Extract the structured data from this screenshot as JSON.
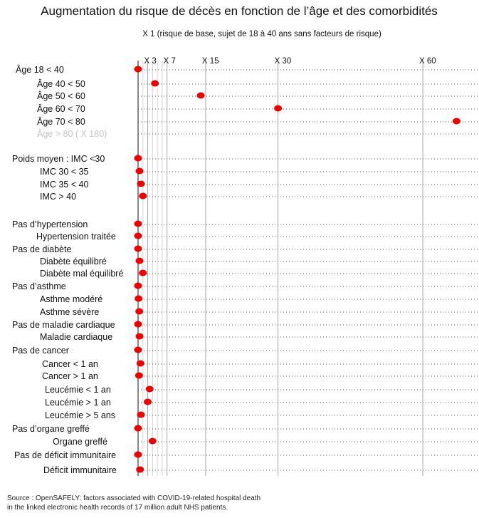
{
  "chart_data": {
    "type": "scatter",
    "title": "Augmentation du risque de décès en fonction de l’âge et des comorbidités",
    "subtitle": "X 1 (risque de base, sujet de 18 à 40 ans sans facteurs de risque)",
    "x_ticks": [
      {
        "value": 3,
        "label": "X 3"
      },
      {
        "value": 7,
        "label": "X 7"
      },
      {
        "value": 15,
        "label": "X 15"
      },
      {
        "value": 30,
        "label": "X 30"
      },
      {
        "value": 60,
        "label": "X 60"
      }
    ],
    "xlim": [
      1,
      70
    ],
    "grid": true,
    "dot_color": "#ee0000",
    "rows": [
      {
        "label": "Âge 18 < 40",
        "value": 1
      },
      {
        "label": "Âge 40 < 50",
        "value": 4.5
      },
      {
        "label": "Âge 50 < 60",
        "value": 14
      },
      {
        "label": "Âge 60 < 70",
        "value": 30
      },
      {
        "label": "Âge 70 < 80",
        "value": 67
      },
      {
        "label": "Âge > 80 ( X 180)",
        "value": null,
        "muted": true
      },
      {
        "label": "Poids moyen : IMC <30",
        "value": 1
      },
      {
        "label": "IMC 30 < 35",
        "value": 1.3
      },
      {
        "label": "IMC 35 < 40",
        "value": 1.6
      },
      {
        "label": "IMC    > 40",
        "value": 2
      },
      {
        "label": "Pas d’hypertension",
        "value": 1
      },
      {
        "label": "Hypertension traitée",
        "value": 1
      },
      {
        "label": "Pas de diabète",
        "value": 1
      },
      {
        "label": "Diabète équilibré",
        "value": 1.3
      },
      {
        "label": "Diabète mal équilibré",
        "value": 2
      },
      {
        "label": "Pas d’asthme",
        "value": 1
      },
      {
        "label": "Asthme modéré",
        "value": 1.1
      },
      {
        "label": "Asthme sévère",
        "value": 1.25
      },
      {
        "label": "Pas de maladie cardiaque",
        "value": 1
      },
      {
        "label": "Maladie cardiaque",
        "value": 1.3
      },
      {
        "label": "Pas de cancer",
        "value": 1
      },
      {
        "label": "Cancer < 1 an",
        "value": 1.5
      },
      {
        "label": "Cancer > 1 an",
        "value": 1.2
      },
      {
        "label": "Leucémie < 1 an",
        "value": 3.4
      },
      {
        "label": "Leucémie > 1 an",
        "value": 3
      },
      {
        "label": "Leucémie > 5 ans",
        "value": 1.6
      },
      {
        "label": "Pas d’organe greffé",
        "value": 1
      },
      {
        "label": "Organe greffé",
        "value": 4
      },
      {
        "label": "Pas de déficit immunitaire",
        "value": 1
      },
      {
        "label": "Déficit immunitaire",
        "value": 1.4
      }
    ],
    "source_lines": [
      "Source : OpenSAFELY: factors associated with COVID-19-related hospital death",
      "in the linked electronic health records of 17 million adult NHS patients."
    ]
  }
}
